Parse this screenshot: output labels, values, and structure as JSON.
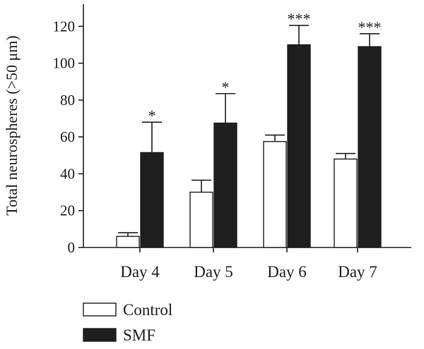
{
  "chart_data": {
    "type": "bar",
    "ylabel": "Total neurospheres (>50 μm)",
    "xlabel": "",
    "ylim": [
      0,
      132
    ],
    "yticks": [
      0,
      20,
      40,
      60,
      80,
      100,
      120
    ],
    "categories": [
      "Day 4",
      "Day 5",
      "Day 6",
      "Day 7"
    ],
    "series": [
      {
        "name": "Control",
        "color": "#ffffff",
        "values": [
          6,
          30,
          57.5,
          48
        ],
        "errors": [
          2,
          6.5,
          3.5,
          3
        ]
      },
      {
        "name": "SMF",
        "color": "#1e1e1e",
        "values": [
          51.5,
          67.5,
          110,
          109
        ],
        "errors": [
          16.5,
          16,
          10.5,
          7
        ]
      }
    ],
    "significance": [
      "*",
      "*",
      "***",
      "***"
    ],
    "legend_position": "bottom-left",
    "grid": false
  }
}
